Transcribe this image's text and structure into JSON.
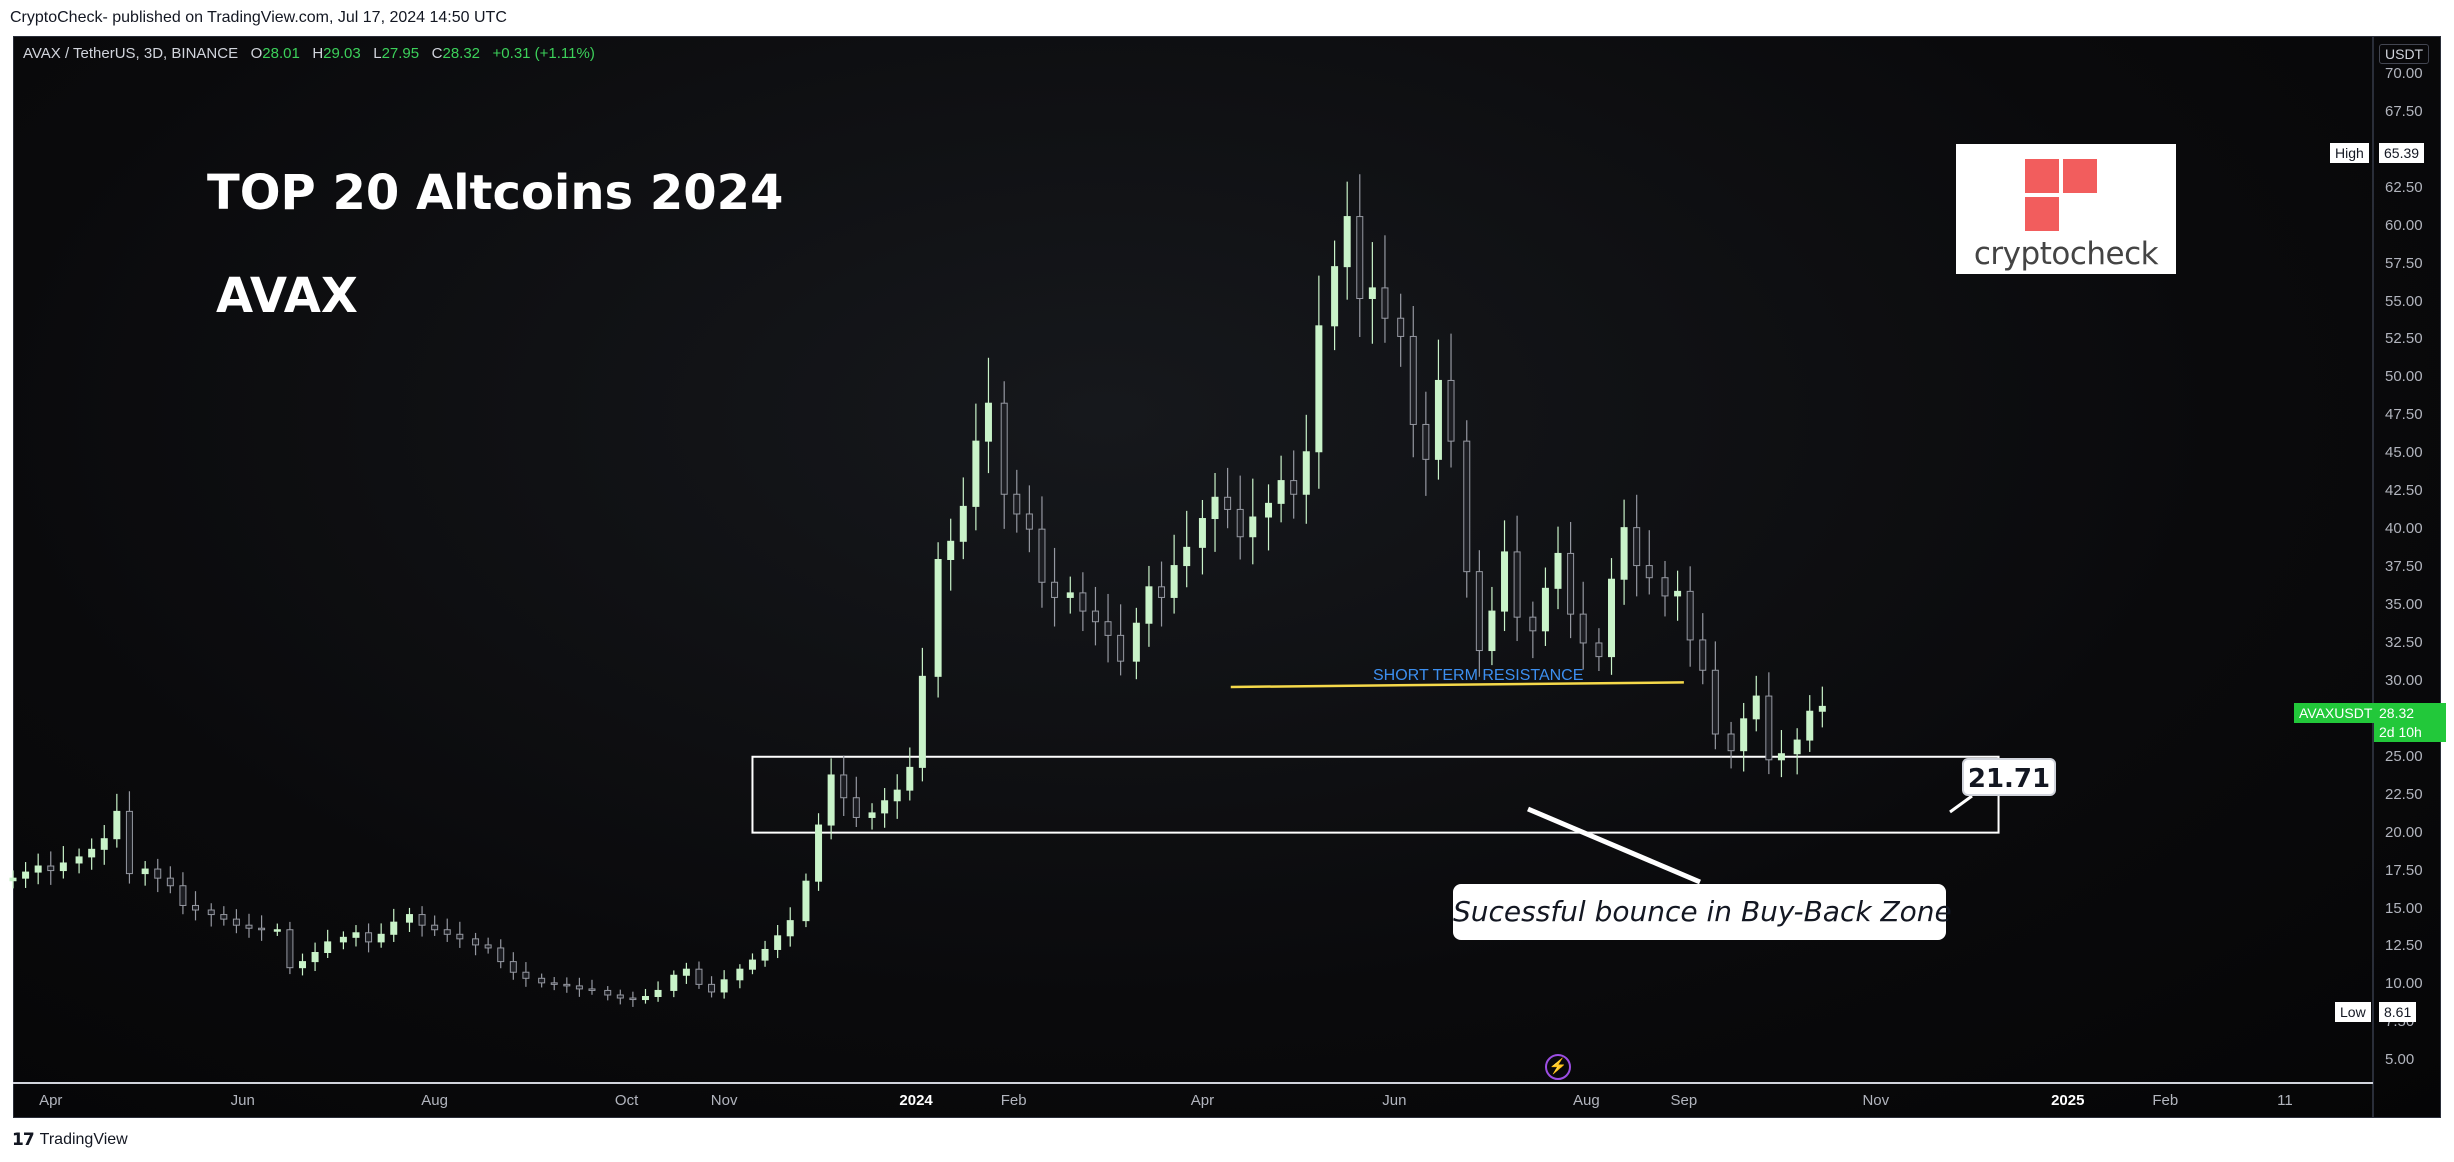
{
  "header": {
    "published": "CryptoCheck- published on TradingView.com, Jul 17, 2024 14:50 UTC"
  },
  "footer": {
    "brand": "TradingView"
  },
  "symbol": {
    "name": "AVAX / TetherUS, 3D, BINANCE",
    "o_label": "O",
    "o": "28.01",
    "h_label": "H",
    "h": "29.03",
    "l_label": "L",
    "l": "27.95",
    "c_label": "C",
    "c": "28.32",
    "change": "+0.31 (+1.11%)"
  },
  "annotations": {
    "title": "TOP 20 Altcoins 2024",
    "subtitle": "AVAX",
    "resistance_label": "SHORT TERM RESISTANCE",
    "callout": "Sucessful bounce in Buy-Back Zone",
    "low_tag": "21.71",
    "logo_text": "cryptocheck"
  },
  "axis_badges": {
    "currency": "USDT",
    "high_label": "High",
    "high_value": "65.39",
    "low_label": "Low",
    "low_value": "8.61",
    "ticker": "AVAXUSDT",
    "last_price": "28.32",
    "countdown": "2d 10h"
  },
  "colors": {
    "up": "#c9f3c9",
    "down": "#9598a1",
    "resistance": "#f5d94a",
    "last_price_bg": "#22c83a",
    "logo": "#f25d5d"
  },
  "chart_data": {
    "type": "candlestick",
    "title": "TOP 20 Altcoins 2024",
    "ylim": [
      3.5,
      72.5
    ],
    "y_ticks": [
      "70.00",
      "67.50",
      "65.00",
      "62.50",
      "60.00",
      "57.50",
      "55.00",
      "52.50",
      "50.00",
      "47.50",
      "45.00",
      "42.50",
      "40.00",
      "37.50",
      "35.00",
      "32.50",
      "30.00",
      "27.50",
      "25.00",
      "22.50",
      "20.00",
      "17.50",
      "15.00",
      "12.50",
      "10.00",
      "7.50",
      "5.00"
    ],
    "x_ticks": [
      {
        "label": "Apr",
        "date": "2023-04-01"
      },
      {
        "label": "Jun",
        "date": "2023-06-01"
      },
      {
        "label": "Aug",
        "date": "2023-08-01"
      },
      {
        "label": "Oct",
        "date": "2023-10-01"
      },
      {
        "label": "Nov",
        "date": "2023-11-01"
      },
      {
        "label": "2024",
        "date": "2024-01-01"
      },
      {
        "label": "Feb",
        "date": "2024-02-01"
      },
      {
        "label": "Apr",
        "date": "2024-04-01"
      },
      {
        "label": "Jun",
        "date": "2024-06-01"
      },
      {
        "label": "Aug",
        "date": "2024-08-01"
      },
      {
        "label": "Sep",
        "date": "2024-09-01"
      },
      {
        "label": "Nov",
        "date": "2024-11-01"
      },
      {
        "label": "2025",
        "date": "2025-01-01"
      },
      {
        "label": "Feb",
        "date": "2025-02-01"
      },
      {
        "label": "11",
        "date": "2025-03-11"
      }
    ],
    "x_range": [
      "2023-03-20",
      "2025-04-08"
    ],
    "buy_back_zone": {
      "from": "2023-11-10",
      "to": "2024-12-10",
      "low": 20.0,
      "high": 25.0
    },
    "resistance_line": {
      "from": "2024-04-10",
      "to": "2024-09-01",
      "y_from": 29.6,
      "y_to": 29.9
    },
    "close_series": [
      17.0,
      17.4,
      17.8,
      17.5,
      18.0,
      18.4,
      18.9,
      19.6,
      21.4,
      17.3,
      17.6,
      17.0,
      16.5,
      15.2,
      14.9,
      14.6,
      14.3,
      13.9,
      13.7,
      13.6,
      13.6,
      11.1,
      11.5,
      12.1,
      12.8,
      13.1,
      13.4,
      12.8,
      13.3,
      14.1,
      14.6,
      13.9,
      13.6,
      13.3,
      13.0,
      12.6,
      12.4,
      11.5,
      10.8,
      10.4,
      10.1,
      10.0,
      9.9,
      9.7,
      9.6,
      9.3,
      9.1,
      9.0,
      9.2,
      9.6,
      10.6,
      11.0,
      10.0,
      9.5,
      10.3,
      11.0,
      11.6,
      12.3,
      13.2,
      14.2,
      16.8,
      20.5,
      23.8,
      22.3,
      21.0,
      21.3,
      22.1,
      22.8,
      24.3,
      30.3,
      38.0,
      39.2,
      41.5,
      45.8,
      48.3,
      42.3,
      41.0,
      40.0,
      36.5,
      35.5,
      35.8,
      34.6,
      33.9,
      33.0,
      31.3,
      33.8,
      36.2,
      35.5,
      37.6,
      38.8,
      40.7,
      42.1,
      41.3,
      39.5,
      40.8,
      41.7,
      43.2,
      42.3,
      45.1,
      53.4,
      57.3,
      60.6,
      55.2,
      55.9,
      53.9,
      52.7,
      46.9,
      44.6,
      49.8,
      45.8,
      37.2,
      32.0,
      34.6,
      38.5,
      34.2,
      33.3,
      36.1,
      38.4,
      34.4,
      32.5,
      31.6,
      36.7,
      40.1,
      37.6,
      36.8,
      35.6,
      35.9,
      32.7,
      30.7,
      26.5,
      25.4,
      27.5,
      29.0,
      24.8,
      25.2,
      26.1,
      28.0,
      28.32
    ]
  }
}
